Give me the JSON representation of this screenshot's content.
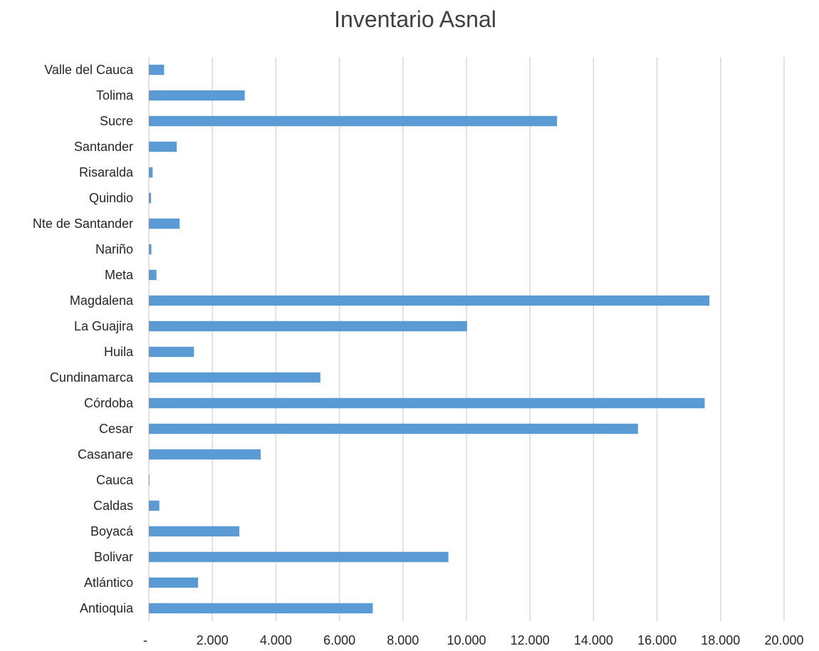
{
  "chart_data": {
    "type": "bar",
    "orientation": "horizontal",
    "title": "Inventario Asnal",
    "xlabel": "",
    "ylabel": "",
    "xlim": [
      0,
      20000
    ],
    "x_ticks": [
      0,
      2000,
      4000,
      6000,
      8000,
      10000,
      12000,
      14000,
      16000,
      18000,
      20000
    ],
    "x_tick_labels": [
      "-",
      "2.000",
      "4.000",
      "6.000",
      "8.000",
      "10.000",
      "12.000",
      "14.000",
      "16.000",
      "18.000",
      "20.000"
    ],
    "grid": "vertical",
    "legend": "none",
    "bar_color": "#5b9bd5",
    "categories": [
      "Antioquia",
      "Atlántico",
      "Bolivar",
      "Boyacá",
      "Caldas",
      "Cauca",
      "Casanare",
      "Cesar",
      "Córdoba",
      "Cundinamarca",
      "Huila",
      "La Guajira",
      "Magdalena",
      "Meta",
      "Nariño",
      "Nte de Santander",
      "Quindio",
      "Risaralda",
      "Santander",
      "Sucre",
      "Tolima",
      "Valle del Cauca"
    ],
    "values": [
      7050,
      1550,
      9430,
      2850,
      330,
      20,
      3520,
      15400,
      17500,
      5400,
      1420,
      10020,
      17650,
      240,
      80,
      970,
      70,
      120,
      880,
      12850,
      3020,
      480
    ]
  }
}
